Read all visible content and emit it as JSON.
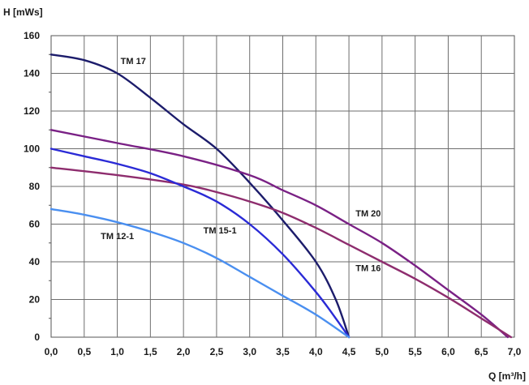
{
  "chart_data": {
    "type": "line",
    "ylabel": "H [mWs]",
    "xlabel": "Q [m³/h]",
    "xlim": [
      0,
      7
    ],
    "ylim": [
      0,
      160
    ],
    "grid": true,
    "x_ticks": [
      "0,0",
      "0,5",
      "1,0",
      "1,5",
      "2,0",
      "2,5",
      "3,0",
      "3,5",
      "4,0",
      "4,5",
      "5,0",
      "5,5",
      "6,0",
      "6,5",
      "7,0"
    ],
    "y_ticks": [
      "0",
      "20",
      "40",
      "60",
      "80",
      "100",
      "120",
      "140",
      "160"
    ],
    "series": [
      {
        "name": "TM 17",
        "color": "#1c1c6b",
        "points": [
          [
            0,
            150
          ],
          [
            0.5,
            147
          ],
          [
            1.0,
            140
          ],
          [
            1.5,
            127
          ],
          [
            2.0,
            113
          ],
          [
            2.5,
            100
          ],
          [
            3.0,
            82
          ],
          [
            3.5,
            62
          ],
          [
            4.0,
            40
          ],
          [
            4.3,
            20
          ],
          [
            4.5,
            0
          ]
        ]
      },
      {
        "name": "TM 20",
        "color": "#7a2185",
        "points": [
          [
            0,
            110
          ],
          [
            1.0,
            103
          ],
          [
            2.0,
            96
          ],
          [
            3.0,
            86
          ],
          [
            3.5,
            78
          ],
          [
            4.0,
            70
          ],
          [
            4.5,
            60
          ],
          [
            5.0,
            50
          ],
          [
            5.5,
            38
          ],
          [
            6.0,
            25
          ],
          [
            6.5,
            12
          ],
          [
            6.9,
            0
          ]
        ]
      },
      {
        "name": "TM 16",
        "color": "#8e2d6e",
        "points": [
          [
            0,
            90
          ],
          [
            1.0,
            86
          ],
          [
            2.0,
            81
          ],
          [
            2.5,
            77
          ],
          [
            3.0,
            72
          ],
          [
            3.5,
            66
          ],
          [
            4.0,
            58
          ],
          [
            4.5,
            49
          ],
          [
            5.0,
            40
          ],
          [
            5.5,
            31
          ],
          [
            6.0,
            21
          ],
          [
            6.5,
            10
          ],
          [
            6.95,
            0
          ]
        ]
      },
      {
        "name": "TM 15-1",
        "color": "#2a2ad6",
        "points": [
          [
            0,
            100
          ],
          [
            0.5,
            96
          ],
          [
            1.0,
            92
          ],
          [
            1.5,
            87
          ],
          [
            2.0,
            80
          ],
          [
            2.5,
            72
          ],
          [
            3.0,
            60
          ],
          [
            3.5,
            44
          ],
          [
            4.0,
            24
          ],
          [
            4.3,
            10
          ],
          [
            4.5,
            0
          ]
        ]
      },
      {
        "name": "TM 12-1",
        "color": "#4a8ff0",
        "points": [
          [
            0,
            68
          ],
          [
            0.5,
            65
          ],
          [
            1.0,
            61
          ],
          [
            1.5,
            56
          ],
          [
            2.0,
            50
          ],
          [
            2.5,
            42
          ],
          [
            3.0,
            32
          ],
          [
            3.5,
            22
          ],
          [
            4.0,
            12
          ],
          [
            4.5,
            0
          ]
        ]
      }
    ],
    "annotations": [
      {
        "series": "TM 17",
        "text": "TM 17",
        "x": 1.05,
        "y": 145
      },
      {
        "series": "TM 20",
        "text": "TM 20",
        "x": 4.6,
        "y": 64
      },
      {
        "series": "TM 16",
        "text": "TM 16",
        "x": 4.6,
        "y": 35
      },
      {
        "series": "TM 15-1",
        "text": "TM 15-1",
        "x": 2.3,
        "y": 55
      },
      {
        "series": "TM 12-1",
        "text": "TM 12-1",
        "x": 0.75,
        "y": 52
      }
    ]
  }
}
